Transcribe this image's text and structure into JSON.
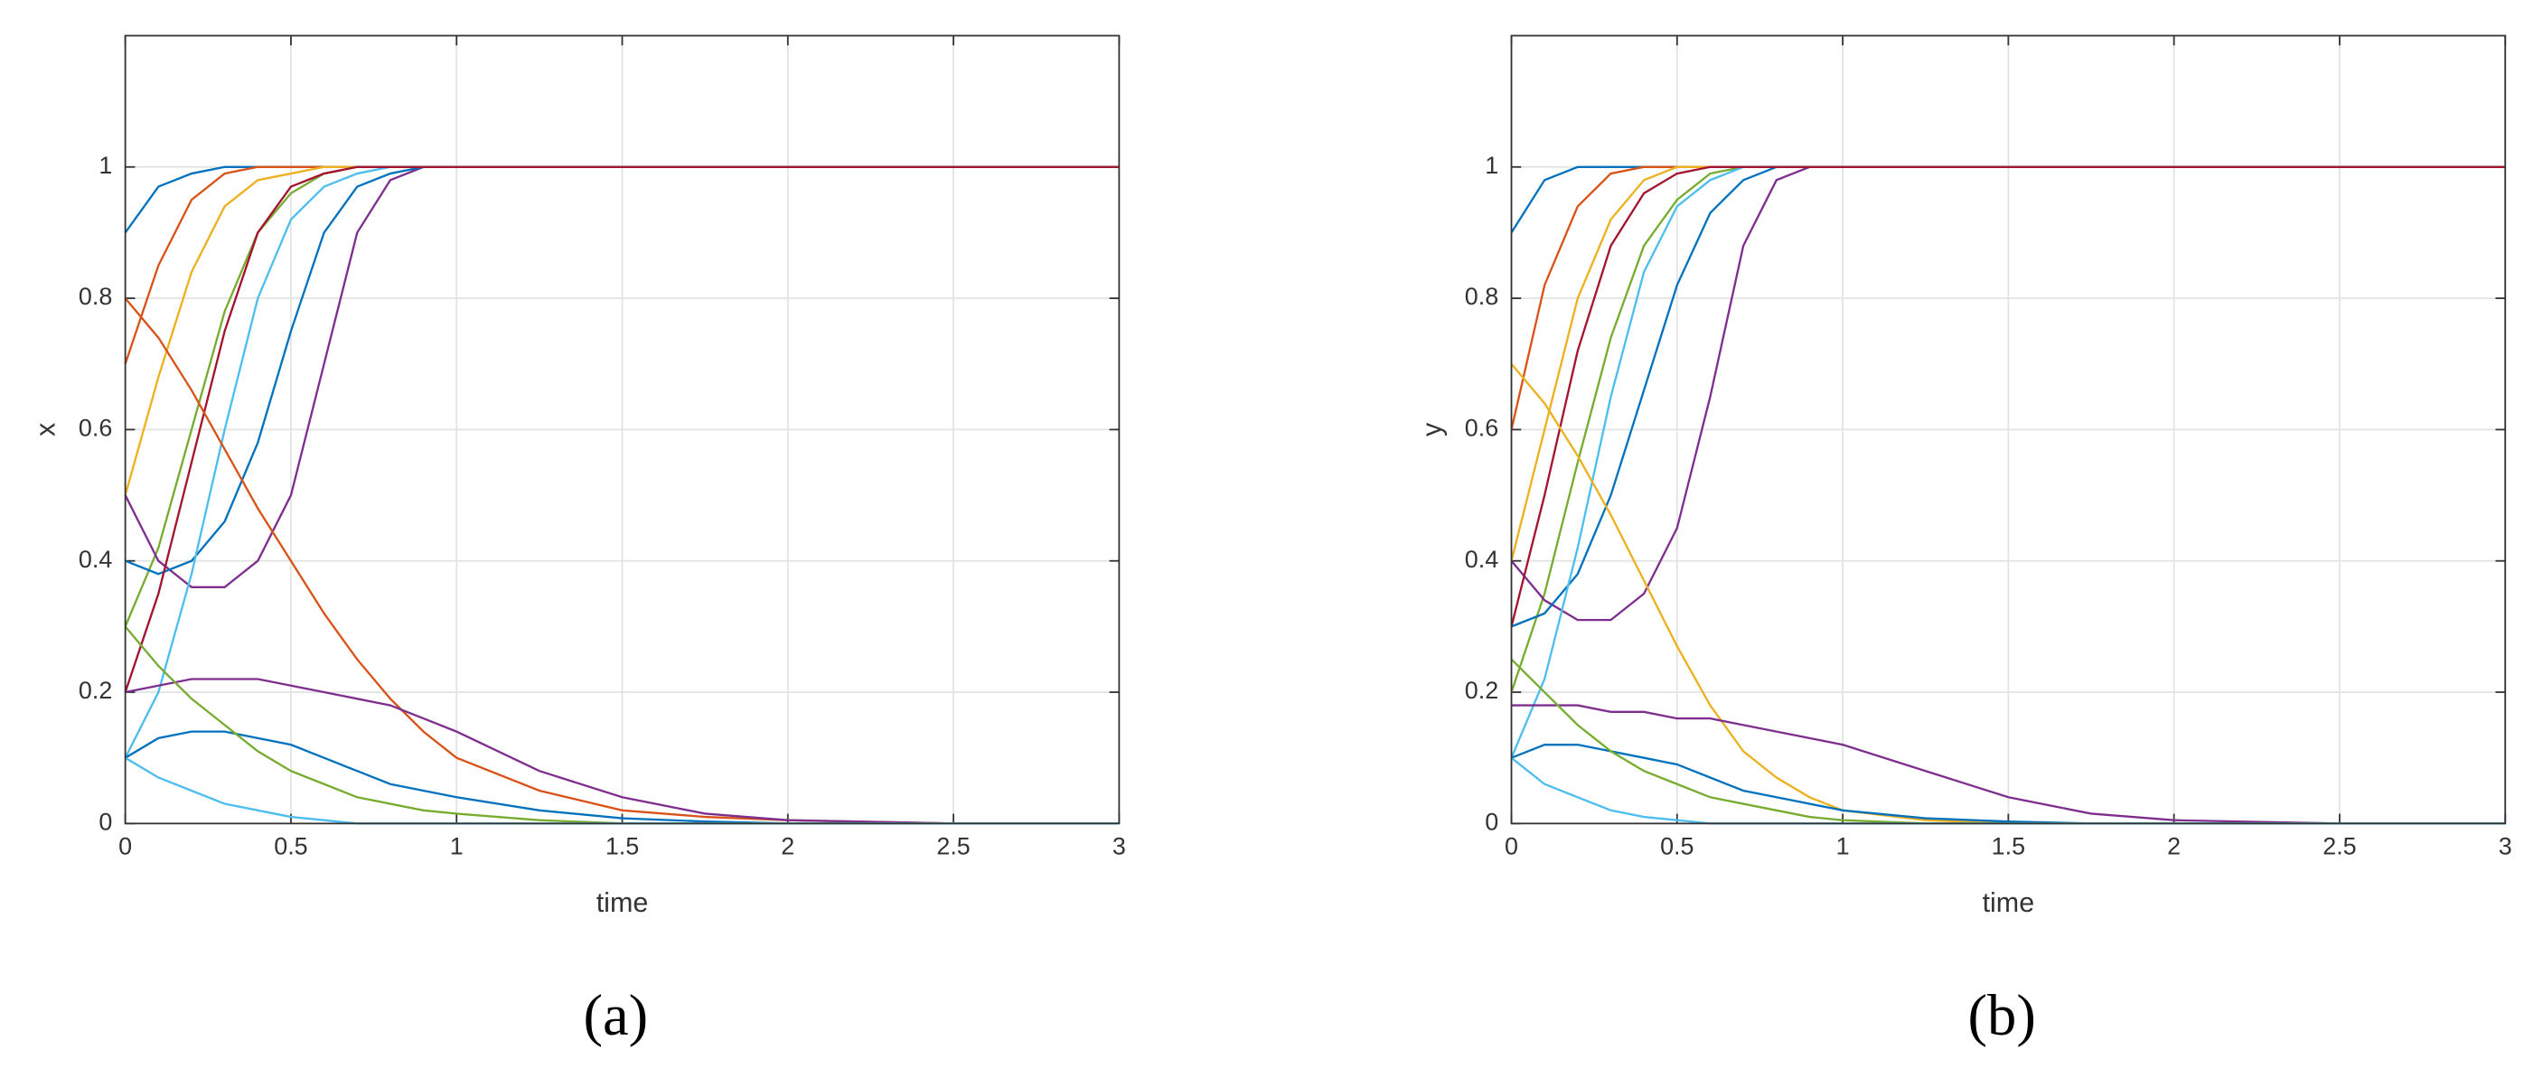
{
  "chart_data": [
    {
      "type": "line",
      "ylabel": "x",
      "xlabel": "time",
      "caption": "(a)",
      "xlim": [
        0,
        3
      ],
      "ylim": [
        0,
        1.2
      ],
      "xticks": [
        0,
        0.5,
        1,
        1.5,
        2,
        2.5,
        3
      ],
      "yticks": [
        0,
        0.2,
        0.4,
        0.6,
        0.8,
        1
      ],
      "grid": true,
      "x": [
        0,
        0.1,
        0.2,
        0.3,
        0.4,
        0.5,
        0.6,
        0.7,
        0.8,
        0.9,
        1,
        1.25,
        1.5,
        1.75,
        2,
        2.5,
        3
      ],
      "series": [
        {
          "color": "#0072bd",
          "values": [
            0.9,
            0.97,
            0.99,
            1,
            1,
            1,
            1,
            1,
            1,
            1,
            1,
            1,
            1,
            1,
            1,
            1,
            1
          ]
        },
        {
          "color": "#d95319",
          "values": [
            0.7,
            0.85,
            0.95,
            0.99,
            1,
            1,
            1,
            1,
            1,
            1,
            1,
            1,
            1,
            1,
            1,
            1,
            1
          ]
        },
        {
          "color": "#edb120",
          "values": [
            0.5,
            0.68,
            0.84,
            0.94,
            0.98,
            0.99,
            1,
            1,
            1,
            1,
            1,
            1,
            1,
            1,
            1,
            1,
            1
          ]
        },
        {
          "color": "#77ac30",
          "values": [
            0.3,
            0.42,
            0.6,
            0.78,
            0.9,
            0.96,
            0.99,
            1,
            1,
            1,
            1,
            1,
            1,
            1,
            1,
            1,
            1
          ]
        },
        {
          "color": "#7e2f8e",
          "values": [
            0.5,
            0.4,
            0.36,
            0.36,
            0.4,
            0.5,
            0.7,
            0.9,
            0.98,
            1,
            1,
            1,
            1,
            1,
            1,
            1,
            1
          ]
        },
        {
          "color": "#0072bd",
          "values": [
            0.4,
            0.38,
            0.4,
            0.46,
            0.58,
            0.75,
            0.9,
            0.97,
            0.99,
            1,
            1,
            1,
            1,
            1,
            1,
            1,
            1
          ]
        },
        {
          "color": "#4dbeee",
          "values": [
            0.1,
            0.2,
            0.38,
            0.6,
            0.8,
            0.92,
            0.97,
            0.99,
            1,
            1,
            1,
            1,
            1,
            1,
            1,
            1,
            1
          ]
        },
        {
          "color": "#a2142f",
          "values": [
            0.2,
            0.35,
            0.55,
            0.75,
            0.9,
            0.97,
            0.99,
            1,
            1,
            1,
            1,
            1,
            1,
            1,
            1,
            1,
            1
          ]
        },
        {
          "color": "#d95319",
          "values": [
            0.8,
            0.74,
            0.66,
            0.57,
            0.48,
            0.4,
            0.32,
            0.25,
            0.19,
            0.14,
            0.1,
            0.05,
            0.02,
            0.01,
            0.005,
            0,
            0
          ]
        },
        {
          "color": "#7e2f8e",
          "values": [
            0.2,
            0.21,
            0.22,
            0.22,
            0.22,
            0.21,
            0.2,
            0.19,
            0.18,
            0.16,
            0.14,
            0.08,
            0.04,
            0.015,
            0.005,
            0,
            0
          ]
        },
        {
          "color": "#0072bd",
          "values": [
            0.1,
            0.13,
            0.14,
            0.14,
            0.13,
            0.12,
            0.1,
            0.08,
            0.06,
            0.05,
            0.04,
            0.02,
            0.008,
            0.003,
            0,
            0,
            0
          ]
        },
        {
          "color": "#77ac30",
          "values": [
            0.3,
            0.24,
            0.19,
            0.15,
            0.11,
            0.08,
            0.06,
            0.04,
            0.03,
            0.02,
            0.015,
            0.005,
            0,
            0,
            0,
            0,
            0
          ]
        },
        {
          "color": "#4dbeee",
          "values": [
            0.1,
            0.07,
            0.05,
            0.03,
            0.02,
            0.01,
            0.005,
            0,
            0,
            0,
            0,
            0,
            0,
            0,
            0,
            0,
            0
          ]
        }
      ]
    },
    {
      "type": "line",
      "ylabel": "y",
      "xlabel": "time",
      "caption": "(b)",
      "xlim": [
        0,
        3
      ],
      "ylim": [
        0,
        1.2
      ],
      "xticks": [
        0,
        0.5,
        1,
        1.5,
        2,
        2.5,
        3
      ],
      "yticks": [
        0,
        0.2,
        0.4,
        0.6,
        0.8,
        1
      ],
      "grid": true,
      "x": [
        0,
        0.1,
        0.2,
        0.3,
        0.4,
        0.5,
        0.6,
        0.7,
        0.8,
        0.9,
        1,
        1.25,
        1.5,
        1.75,
        2,
        2.5,
        3
      ],
      "series": [
        {
          "color": "#0072bd",
          "values": [
            0.9,
            0.98,
            1,
            1,
            1,
            1,
            1,
            1,
            1,
            1,
            1,
            1,
            1,
            1,
            1,
            1,
            1
          ]
        },
        {
          "color": "#d95319",
          "values": [
            0.6,
            0.82,
            0.94,
            0.99,
            1,
            1,
            1,
            1,
            1,
            1,
            1,
            1,
            1,
            1,
            1,
            1,
            1
          ]
        },
        {
          "color": "#edb120",
          "values": [
            0.4,
            0.6,
            0.8,
            0.92,
            0.98,
            1,
            1,
            1,
            1,
            1,
            1,
            1,
            1,
            1,
            1,
            1,
            1
          ]
        },
        {
          "color": "#77ac30",
          "values": [
            0.2,
            0.35,
            0.55,
            0.74,
            0.88,
            0.95,
            0.99,
            1,
            1,
            1,
            1,
            1,
            1,
            1,
            1,
            1,
            1
          ]
        },
        {
          "color": "#7e2f8e",
          "values": [
            0.4,
            0.34,
            0.31,
            0.31,
            0.35,
            0.45,
            0.65,
            0.88,
            0.98,
            1,
            1,
            1,
            1,
            1,
            1,
            1,
            1
          ]
        },
        {
          "color": "#0072bd",
          "values": [
            0.3,
            0.32,
            0.38,
            0.5,
            0.66,
            0.82,
            0.93,
            0.98,
            1,
            1,
            1,
            1,
            1,
            1,
            1,
            1,
            1
          ]
        },
        {
          "color": "#4dbeee",
          "values": [
            0.1,
            0.22,
            0.42,
            0.65,
            0.84,
            0.94,
            0.98,
            1,
            1,
            1,
            1,
            1,
            1,
            1,
            1,
            1,
            1
          ]
        },
        {
          "color": "#a2142f",
          "values": [
            0.3,
            0.5,
            0.72,
            0.88,
            0.96,
            0.99,
            1,
            1,
            1,
            1,
            1,
            1,
            1,
            1,
            1,
            1,
            1
          ]
        },
        {
          "color": "#edb120",
          "values": [
            0.7,
            0.64,
            0.56,
            0.47,
            0.37,
            0.27,
            0.18,
            0.11,
            0.07,
            0.04,
            0.02,
            0.005,
            0,
            0,
            0,
            0,
            0
          ]
        },
        {
          "color": "#7e2f8e",
          "values": [
            0.18,
            0.18,
            0.18,
            0.17,
            0.17,
            0.16,
            0.16,
            0.15,
            0.14,
            0.13,
            0.12,
            0.08,
            0.04,
            0.015,
            0.005,
            0,
            0
          ]
        },
        {
          "color": "#0072bd",
          "values": [
            0.1,
            0.12,
            0.12,
            0.11,
            0.1,
            0.09,
            0.07,
            0.05,
            0.04,
            0.03,
            0.02,
            0.008,
            0.003,
            0,
            0,
            0,
            0
          ]
        },
        {
          "color": "#77ac30",
          "values": [
            0.25,
            0.2,
            0.15,
            0.11,
            0.08,
            0.06,
            0.04,
            0.03,
            0.02,
            0.01,
            0.005,
            0,
            0,
            0,
            0,
            0,
            0
          ]
        },
        {
          "color": "#4dbeee",
          "values": [
            0.1,
            0.06,
            0.04,
            0.02,
            0.01,
            0.005,
            0,
            0,
            0,
            0,
            0,
            0,
            0,
            0,
            0,
            0,
            0
          ]
        }
      ]
    }
  ]
}
